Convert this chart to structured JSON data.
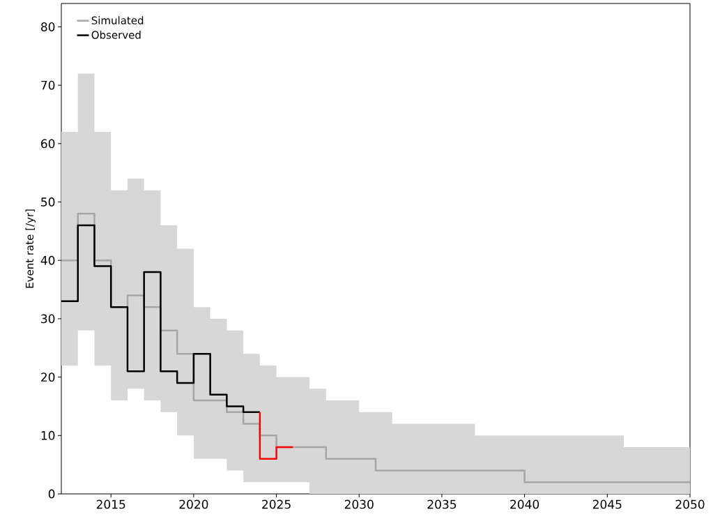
{
  "chart_data": {
    "type": "step",
    "ylabel": "Event rate [/yr]",
    "xlim": [
      2012,
      2050
    ],
    "ylim": [
      0,
      84
    ],
    "xticks": [
      2015,
      2020,
      2025,
      2030,
      2035,
      2040,
      2045,
      2050
    ],
    "yticks": [
      0,
      10,
      20,
      30,
      40,
      50,
      60,
      70,
      80
    ],
    "legend": "top left",
    "series": [
      {
        "name": "Simulated",
        "color": "#a6a6a6",
        "x": [
          2012,
          2013,
          2014,
          2015,
          2016,
          2017,
          2018,
          2019,
          2020,
          2021,
          2022,
          2023,
          2024,
          2025,
          2026,
          2027,
          2028,
          2029,
          2030,
          2031,
          2032,
          2033,
          2034,
          2035,
          2036,
          2037,
          2038,
          2039,
          2040,
          2041,
          2042,
          2043,
          2044,
          2045,
          2046,
          2047,
          2048,
          2049,
          2050
        ],
        "values": [
          40,
          48,
          40,
          32,
          34,
          32,
          28,
          24,
          16,
          16,
          14,
          12,
          10,
          8,
          8,
          8,
          6,
          6,
          6,
          4,
          4,
          4,
          4,
          4,
          4,
          4,
          4,
          4,
          2,
          2,
          2,
          2,
          2,
          2,
          2,
          2,
          2,
          2,
          2
        ],
        "lower": [
          22,
          28,
          22,
          16,
          18,
          16,
          14,
          10,
          6,
          6,
          4,
          2,
          2,
          2,
          2,
          0,
          0,
          0,
          0,
          0,
          0,
          0,
          0,
          0,
          0,
          0,
          0,
          0,
          0,
          0,
          0,
          0,
          0,
          0,
          0,
          0,
          0,
          0,
          0
        ],
        "upper": [
          62,
          72,
          62,
          52,
          54,
          52,
          46,
          42,
          32,
          30,
          28,
          24,
          22,
          20,
          20,
          18,
          16,
          16,
          14,
          14,
          12,
          12,
          12,
          12,
          12,
          10,
          10,
          10,
          10,
          10,
          10,
          10,
          10,
          10,
          8,
          8,
          8,
          8,
          8
        ]
      },
      {
        "name": "Observed",
        "color": "#000000",
        "x": [
          2012,
          2013,
          2014,
          2015,
          2016,
          2017,
          2018,
          2019,
          2020,
          2021,
          2022,
          2023,
          2024
        ],
        "values": [
          33,
          46,
          39,
          32,
          21,
          38,
          21,
          19,
          24,
          17,
          15,
          14,
          14
        ]
      },
      {
        "color": "#ff0000",
        "x": [
          2024,
          2024,
          2025,
          2026
        ],
        "values": [
          14,
          6,
          8,
          8
        ]
      }
    ]
  }
}
